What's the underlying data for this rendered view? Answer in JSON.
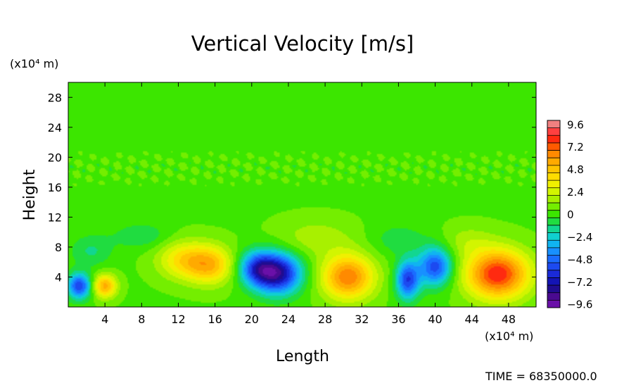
{
  "chart_data": {
    "type": "heatmap",
    "title": "Vertical Velocity [m/s]",
    "xlabel": "Length",
    "ylabel": "Height",
    "x_unit": "(x10⁴ m)",
    "y_unit": "(x10⁴ m)",
    "xlim": [
      0,
      51
    ],
    "ylim": [
      0,
      30
    ],
    "x_ticks": [
      4,
      8,
      12,
      16,
      20,
      24,
      28,
      32,
      36,
      40,
      44,
      48
    ],
    "y_ticks": [
      4,
      8,
      12,
      16,
      20,
      24,
      28
    ],
    "background_value": 0.3,
    "features": [
      {
        "x": 1.2,
        "y": 2.8,
        "value": -6.2,
        "sx": 0.9,
        "sy": 1.2
      },
      {
        "x": 4.0,
        "y": 2.8,
        "value": 5.2,
        "sx": 0.9,
        "sy": 1.1
      },
      {
        "x": 12.5,
        "y": 6.3,
        "value": 3.4,
        "sx": 2.0,
        "sy": 1.8
      },
      {
        "x": 15.5,
        "y": 5.6,
        "value": 4.4,
        "sx": 1.8,
        "sy": 1.8
      },
      {
        "x": 20.5,
        "y": 5.2,
        "value": -4.8,
        "sx": 1.4,
        "sy": 1.6
      },
      {
        "x": 22.8,
        "y": 4.5,
        "value": -8.2,
        "sx": 1.8,
        "sy": 1.9
      },
      {
        "x": 30.5,
        "y": 4.0,
        "value": 6.4,
        "sx": 2.0,
        "sy": 2.1
      },
      {
        "x": 37.0,
        "y": 3.6,
        "value": -6.2,
        "sx": 0.9,
        "sy": 1.8
      },
      {
        "x": 40.0,
        "y": 5.4,
        "value": -6.0,
        "sx": 1.3,
        "sy": 1.8
      },
      {
        "x": 46.8,
        "y": 4.4,
        "value": 8.0,
        "sx": 2.4,
        "sy": 2.3
      },
      {
        "x": 8.0,
        "y": 9.5,
        "value": -1.4,
        "sx": 2.2,
        "sy": 1.2
      },
      {
        "x": 27.0,
        "y": 9.2,
        "value": 1.4,
        "sx": 3.0,
        "sy": 1.8
      },
      {
        "x": 36.0,
        "y": 9.0,
        "value": -1.2,
        "sx": 2.2,
        "sy": 1.5
      },
      {
        "x": 43.5,
        "y": 8.8,
        "value": 1.2,
        "sx": 2.0,
        "sy": 1.5
      },
      {
        "x": 2.5,
        "y": 7.5,
        "value": -1.6,
        "sx": 1.6,
        "sy": 1.5
      }
    ],
    "colorbar": {
      "labels": [
        "9.6",
        "7.2",
        "4.8",
        "2.4",
        "0",
        "−2.4",
        "−4.8",
        "−7.2",
        "−9.6"
      ],
      "levels": [
        9.6,
        8.8,
        8.0,
        7.2,
        6.4,
        5.6,
        4.8,
        4.0,
        3.2,
        2.4,
        1.6,
        0.8,
        0,
        -0.8,
        -1.6,
        -2.4,
        -3.2,
        -4.0,
        -4.8,
        -5.6,
        -6.4,
        -7.2,
        -8.0,
        -8.8,
        -9.6
      ],
      "colors": [
        "#f08080",
        "#ff4040",
        "#ff2a10",
        "#ff5a00",
        "#ff8a00",
        "#ffaa00",
        "#ffc400",
        "#ffdc00",
        "#f0f000",
        "#d2f500",
        "#a8f000",
        "#74ee00",
        "#3ce600",
        "#20dc40",
        "#12d690",
        "#10d0d0",
        "#10b4f0",
        "#1890ff",
        "#1a6cff",
        "#1c4af0",
        "#1a2ad8",
        "#1414b4",
        "#200c90",
        "#4a0a90",
        "#6a10a8"
      ]
    }
  },
  "footer": {
    "time_label": "TIME = ",
    "time_value": "68350000.0"
  }
}
